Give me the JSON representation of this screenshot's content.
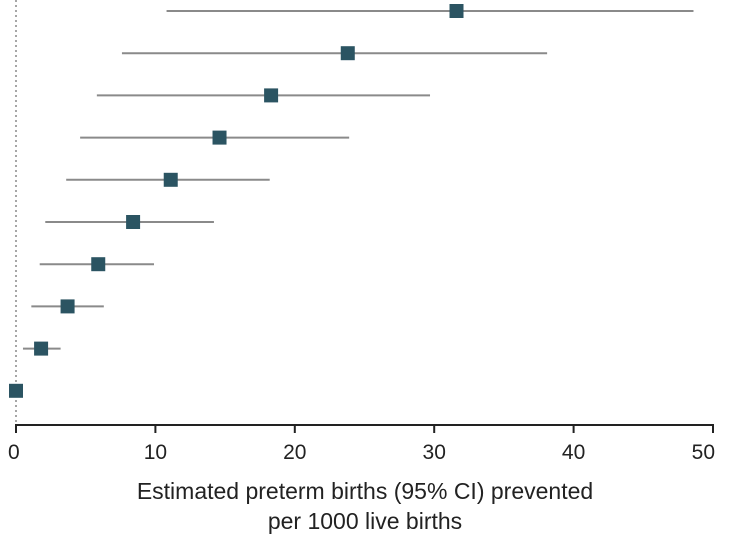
{
  "chart_data": {
    "type": "scatter",
    "subtype": "forest-plot",
    "xlabel_line1": "Estimated preterm births (95% CI) prevented",
    "xlabel_line2": "per 1000 live births",
    "xlim": [
      0,
      50
    ],
    "xticks": [
      "0",
      "10",
      "20",
      "30",
      "40",
      "50"
    ],
    "reference_line_x": 0,
    "grid": false,
    "colors": {
      "marker": "#2b5462",
      "ci_line": "#8a8a8a",
      "axis": "#222222",
      "reference": "#888888"
    },
    "points": [
      {
        "estimate": 31.6,
        "ci_low": 10.8,
        "ci_high": 48.6
      },
      {
        "estimate": 23.8,
        "ci_low": 7.6,
        "ci_high": 38.1
      },
      {
        "estimate": 18.3,
        "ci_low": 5.8,
        "ci_high": 29.7
      },
      {
        "estimate": 14.6,
        "ci_low": 4.6,
        "ci_high": 23.9
      },
      {
        "estimate": 11.1,
        "ci_low": 3.6,
        "ci_high": 18.2
      },
      {
        "estimate": 8.4,
        "ci_low": 2.1,
        "ci_high": 14.2
      },
      {
        "estimate": 5.9,
        "ci_low": 1.7,
        "ci_high": 9.9
      },
      {
        "estimate": 3.7,
        "ci_low": 1.1,
        "ci_high": 6.3
      },
      {
        "estimate": 1.8,
        "ci_low": 0.5,
        "ci_high": 3.2
      },
      {
        "estimate": 0.0,
        "ci_low": 0.0,
        "ci_high": 0.0
      }
    ]
  }
}
